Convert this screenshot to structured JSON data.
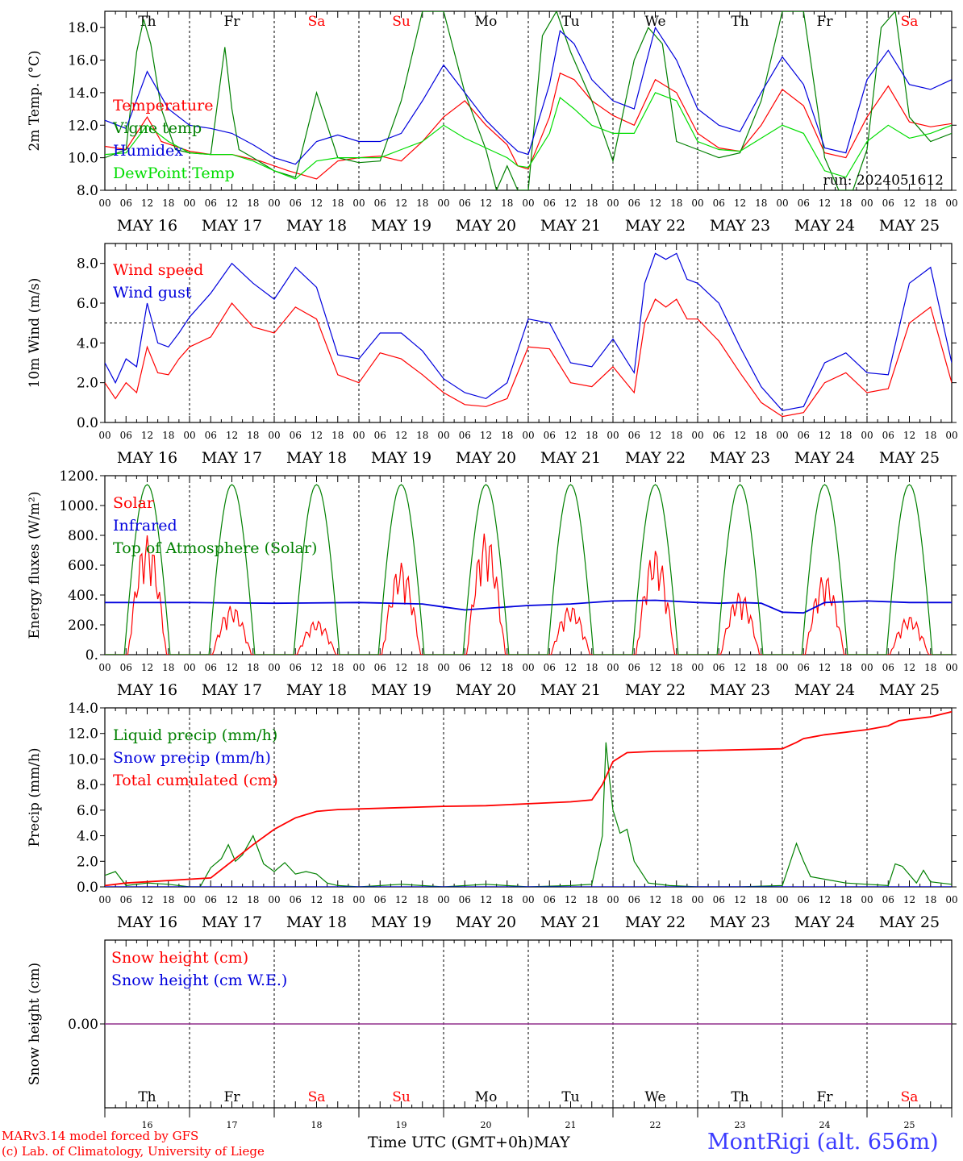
{
  "colors": {
    "red": "#ff0000",
    "green": "#008000",
    "lightgreen": "#00dd00",
    "blue": "#0000dd",
    "purple": "#7a2a9a",
    "station_blue": "#3c3cff"
  },
  "days": {
    "weekdays": [
      "Th",
      "Fr",
      "Sa",
      "Su",
      "Mo",
      "Tu",
      "We",
      "Th",
      "Fr",
      "Sa"
    ],
    "weekday_colors": [
      "#000000",
      "#000000",
      "#ff0000",
      "#ff0000",
      "#000000",
      "#000000",
      "#000000",
      "#000000",
      "#000000",
      "#ff0000"
    ],
    "dates": [
      "MAY 16",
      "MAY 17",
      "MAY 18",
      "MAY 19",
      "MAY 20",
      "MAY 21",
      "MAY 22",
      "MAY 23",
      "MAY 24",
      "MAY 25"
    ],
    "day_numbers": [
      "16",
      "17",
      "18",
      "19",
      "20",
      "21",
      "22",
      "23",
      "24",
      "25"
    ],
    "hour_labels": [
      "00",
      "06",
      "12",
      "18"
    ],
    "final_hour_label": "00"
  },
  "run_label": "run: 2024051612",
  "footer": {
    "model_line": "MARv3.14 model forced by GFS",
    "copyright_line": "(c) Lab. of Climatology, University of Liege",
    "time_axis": "Time UTC (GMT+0h)",
    "month": "MAY",
    "station": "MontRigi (alt. 656m)"
  },
  "chart_data": [
    {
      "type": "line",
      "ylabel": "2m Temp. (°C)",
      "ylim": [
        8,
        19
      ],
      "yticks": [
        8,
        10,
        12,
        14,
        16,
        18
      ],
      "ytick_labels": [
        "8.0",
        "10.0",
        "12.0",
        "14.0",
        "16.0",
        "18.0"
      ],
      "x_hours_range": [
        0,
        240
      ],
      "show_weekdays": true,
      "series": [
        {
          "name": "Temperature",
          "color": "#ff0000",
          "x": [
            0,
            6,
            12,
            16,
            24,
            30,
            36,
            44,
            52,
            60,
            66,
            72,
            78,
            84,
            90,
            96,
            102,
            108,
            114,
            117,
            120,
            126,
            129,
            133,
            138,
            144,
            150,
            156,
            162,
            168,
            174,
            180,
            186,
            192,
            198,
            204,
            210,
            216,
            222,
            228,
            234,
            240
          ],
          "values": [
            10.7,
            10.5,
            12.5,
            11.0,
            10.4,
            10.2,
            10.2,
            9.8,
            9.2,
            8.7,
            9.8,
            10.0,
            10.1,
            9.8,
            11.0,
            12.5,
            13.5,
            12.0,
            10.8,
            9.5,
            9.3,
            12.5,
            15.2,
            14.8,
            13.5,
            12.6,
            12.0,
            14.8,
            14.0,
            11.5,
            10.6,
            10.4,
            12.0,
            14.2,
            13.2,
            10.3,
            10.0,
            12.5,
            14.4,
            12.2,
            11.9,
            12.1
          ]
        },
        {
          "name": "Vigne temp",
          "color": "#008000",
          "x": [
            0,
            6,
            9,
            11,
            13,
            16,
            20,
            24,
            30,
            34,
            36,
            38,
            42,
            48,
            54,
            60,
            66,
            72,
            78,
            84,
            90,
            96,
            102,
            108,
            111,
            114,
            117,
            120,
            124,
            128,
            132,
            138,
            144,
            150,
            154,
            158,
            162,
            168,
            174,
            180,
            186,
            192,
            198,
            204,
            208,
            212,
            216,
            220,
            224,
            228,
            234,
            240
          ],
          "values": [
            10.0,
            10.5,
            16.5,
            18.5,
            17.0,
            13.0,
            10.5,
            10.3,
            10.2,
            16.8,
            13.0,
            10.5,
            10.0,
            9.2,
            8.8,
            14.0,
            10.0,
            9.7,
            9.8,
            13.5,
            19.0,
            19.0,
            14.0,
            10.5,
            8.0,
            9.5,
            8.0,
            8.0,
            17.5,
            19.0,
            16.5,
            13.5,
            9.8,
            16.0,
            18.0,
            17.0,
            11.0,
            10.5,
            10.0,
            10.3,
            13.5,
            19.0,
            19.0,
            10.0,
            8.0,
            8.0,
            10.5,
            18.0,
            19.0,
            12.5,
            11.0,
            11.5
          ]
        },
        {
          "name": "Humidex",
          "color": "#0000dd",
          "x": [
            0,
            6,
            12,
            18,
            24,
            30,
            36,
            42,
            48,
            54,
            60,
            66,
            72,
            78,
            84,
            90,
            96,
            102,
            108,
            114,
            117,
            120,
            126,
            129,
            133,
            138,
            144,
            150,
            156,
            162,
            168,
            174,
            180,
            186,
            192,
            198,
            204,
            210,
            216,
            222,
            228,
            234,
            240
          ],
          "values": [
            12.3,
            11.8,
            15.3,
            13.0,
            12.0,
            11.8,
            11.5,
            10.8,
            10.0,
            9.6,
            11.0,
            11.4,
            11.0,
            11.0,
            11.5,
            13.5,
            15.7,
            14.0,
            12.3,
            11.0,
            10.4,
            10.2,
            14.5,
            17.8,
            17.0,
            14.8,
            13.5,
            13.0,
            18.0,
            16.0,
            13.0,
            12.0,
            11.6,
            14.0,
            16.2,
            14.5,
            10.6,
            10.3,
            14.8,
            16.6,
            14.5,
            14.2,
            14.8
          ]
        },
        {
          "name": "DewPoint Temp",
          "color": "#00dd00",
          "x": [
            0,
            6,
            12,
            18,
            24,
            30,
            36,
            42,
            48,
            54,
            60,
            66,
            72,
            78,
            84,
            90,
            96,
            102,
            108,
            114,
            117,
            120,
            126,
            129,
            133,
            138,
            144,
            150,
            156,
            162,
            168,
            174,
            180,
            186,
            192,
            198,
            204,
            210,
            216,
            222,
            228,
            234,
            240
          ],
          "values": [
            10.2,
            10.3,
            12.0,
            11.0,
            10.3,
            10.2,
            10.2,
            9.8,
            9.2,
            8.7,
            9.8,
            10.0,
            10.0,
            10.0,
            10.5,
            11.0,
            12.0,
            11.2,
            10.6,
            10.0,
            9.5,
            9.4,
            11.5,
            13.7,
            13.0,
            12.0,
            11.5,
            11.5,
            14.0,
            13.5,
            11.0,
            10.5,
            10.4,
            11.2,
            12.0,
            11.5,
            9.2,
            8.8,
            11.0,
            12.0,
            11.2,
            11.5,
            12.0
          ]
        }
      ]
    },
    {
      "type": "line",
      "ylabel": "10m Wind (m/s)",
      "ylim": [
        0,
        9
      ],
      "yticks": [
        0,
        2,
        4,
        6,
        8
      ],
      "ytick_labels": [
        "0.0",
        "2.0",
        "4.0",
        "6.0",
        "8.0"
      ],
      "x_hours_range": [
        0,
        240
      ],
      "reference_line": 5,
      "series": [
        {
          "name": "Wind speed",
          "color": "#ff0000",
          "x": [
            0,
            3,
            6,
            9,
            12,
            15,
            18,
            21,
            24,
            30,
            36,
            42,
            48,
            54,
            60,
            66,
            72,
            78,
            84,
            90,
            96,
            102,
            108,
            114,
            120,
            126,
            132,
            138,
            144,
            150,
            153,
            156,
            159,
            162,
            165,
            168,
            174,
            180,
            186,
            192,
            198,
            204,
            210,
            216,
            222,
            228,
            234,
            240
          ],
          "values": [
            2.0,
            1.2,
            2.0,
            1.5,
            3.8,
            2.5,
            2.4,
            3.2,
            3.8,
            4.3,
            6.0,
            4.8,
            4.5,
            5.8,
            5.2,
            2.4,
            2.0,
            3.5,
            3.2,
            2.4,
            1.5,
            0.9,
            0.8,
            1.2,
            3.8,
            3.7,
            2.0,
            1.8,
            2.8,
            1.5,
            5.0,
            6.2,
            5.8,
            6.2,
            5.2,
            5.2,
            4.1,
            2.5,
            1.0,
            0.3,
            0.5,
            2.0,
            2.5,
            1.5,
            1.7,
            5.0,
            5.8,
            2.0
          ]
        },
        {
          "name": "Wind gust",
          "color": "#0000dd",
          "x": [
            0,
            3,
            6,
            9,
            12,
            15,
            18,
            21,
            24,
            30,
            36,
            42,
            48,
            54,
            60,
            66,
            72,
            78,
            84,
            90,
            96,
            102,
            108,
            114,
            120,
            126,
            132,
            138,
            144,
            150,
            153,
            156,
            159,
            162,
            165,
            168,
            174,
            180,
            186,
            192,
            198,
            204,
            210,
            216,
            222,
            228,
            234,
            240
          ],
          "values": [
            3.0,
            2.0,
            3.2,
            2.8,
            6.0,
            4.0,
            3.8,
            4.5,
            5.3,
            6.5,
            8.0,
            7.0,
            6.2,
            7.8,
            6.8,
            3.4,
            3.2,
            4.5,
            4.5,
            3.6,
            2.2,
            1.5,
            1.2,
            2.0,
            5.2,
            5.0,
            3.0,
            2.8,
            4.2,
            2.5,
            7.0,
            8.5,
            8.2,
            8.5,
            7.2,
            7.0,
            6.0,
            3.8,
            1.8,
            0.6,
            0.8,
            3.0,
            3.5,
            2.5,
            2.4,
            7.0,
            7.8,
            3.0
          ]
        }
      ]
    },
    {
      "type": "line",
      "ylabel": "Energy fluxes (W/m²)",
      "ylim": [
        0,
        1200
      ],
      "yticks": [
        0,
        200,
        400,
        600,
        800,
        1000,
        1200
      ],
      "ytick_labels": [
        "0.",
        "200.",
        "400.",
        "600.",
        "800.",
        "1000.",
        "1200."
      ],
      "x_hours_range": [
        0,
        240
      ],
      "series": [
        {
          "name": "Solar",
          "color": "#ff0000",
          "daily_peak": [
            800,
            330,
            230,
            620,
            820,
            330,
            710,
            420,
            540,
            260
          ]
        },
        {
          "name": "Infrared",
          "color": "#0000dd",
          "x": [
            0,
            24,
            48,
            72,
            90,
            96,
            102,
            108,
            120,
            132,
            144,
            156,
            168,
            174,
            180,
            186,
            192,
            198,
            204,
            216,
            228,
            240
          ],
          "values": [
            350,
            350,
            345,
            350,
            340,
            320,
            300,
            310,
            330,
            340,
            360,
            365,
            350,
            345,
            350,
            345,
            285,
            280,
            350,
            360,
            350,
            350
          ]
        },
        {
          "name": "Top of Atmosphere (Solar)",
          "color": "#008000",
          "daily_peak": [
            1140,
            1140,
            1140,
            1140,
            1140,
            1140,
            1140,
            1140,
            1140,
            1140
          ]
        }
      ]
    },
    {
      "type": "line",
      "ylabel": "Precip (mm/h)",
      "ylim": [
        0,
        14
      ],
      "yticks": [
        0,
        2,
        4,
        6,
        8,
        10,
        12,
        14
      ],
      "ytick_labels": [
        "0.0",
        "2.0",
        "4.0",
        "6.0",
        "8.0",
        "10.0",
        "12.0",
        "14.0"
      ],
      "x_hours_range": [
        0,
        240
      ],
      "series": [
        {
          "name": "Liquid precip (mm/h)",
          "color": "#008000",
          "x": [
            0,
            3,
            6,
            12,
            18,
            24,
            27,
            30,
            33,
            35,
            37,
            39,
            42,
            45,
            48,
            51,
            54,
            57,
            60,
            63,
            66,
            72,
            84,
            96,
            108,
            120,
            132,
            138,
            141,
            142,
            143,
            144,
            146,
            148,
            150,
            154,
            160,
            168,
            180,
            192,
            196,
            198,
            200,
            204,
            210,
            216,
            222,
            224,
            226,
            230,
            232,
            234,
            240
          ],
          "values": [
            0.9,
            1.2,
            0.1,
            0.3,
            0.2,
            0.0,
            0.0,
            1.5,
            2.2,
            3.3,
            2.0,
            2.5,
            4.0,
            1.8,
            1.2,
            1.9,
            1.0,
            1.2,
            1.0,
            0.3,
            0.1,
            0.0,
            0.2,
            0.0,
            0.2,
            0.0,
            0.1,
            0.2,
            4.0,
            11.3,
            8.5,
            6.0,
            4.2,
            4.5,
            2.0,
            0.3,
            0.1,
            0.0,
            0.0,
            0.1,
            3.4,
            2.0,
            0.8,
            0.6,
            0.3,
            0.2,
            0.1,
            1.8,
            1.6,
            0.3,
            1.3,
            0.4,
            0.2
          ]
        },
        {
          "name": "Snow precip (mm/h)",
          "color": "#0000dd",
          "x": [
            0,
            240
          ],
          "values": [
            0.0,
            0.0
          ]
        },
        {
          "name": "Total cumulated (cm)",
          "color": "#ff0000",
          "x": [
            0,
            6,
            12,
            18,
            24,
            30,
            36,
            42,
            48,
            54,
            60,
            66,
            72,
            84,
            96,
            108,
            120,
            132,
            138,
            141,
            144,
            148,
            156,
            168,
            192,
            196,
            198,
            204,
            216,
            222,
            225,
            228,
            234,
            240
          ],
          "values": [
            0.1,
            0.3,
            0.4,
            0.5,
            0.6,
            0.7,
            2.0,
            3.3,
            4.5,
            5.4,
            5.9,
            6.05,
            6.1,
            6.2,
            6.3,
            6.35,
            6.5,
            6.65,
            6.8,
            8.0,
            9.8,
            10.5,
            10.6,
            10.65,
            10.8,
            11.3,
            11.6,
            11.9,
            12.3,
            12.6,
            13.0,
            13.1,
            13.3,
            13.7
          ]
        }
      ]
    },
    {
      "type": "line",
      "ylabel": "Snow height (cm)",
      "yticks": [
        0
      ],
      "ytick_labels": [
        "0.00"
      ],
      "x_hours_range": [
        0,
        240
      ],
      "series": [
        {
          "name": "Snow height (cm)",
          "color": "#ff0000",
          "x": [
            0,
            240
          ],
          "values": [
            0,
            0
          ]
        },
        {
          "name": "Snow height (cm W.E.)",
          "color": "#0000dd",
          "x": [
            0,
            240
          ],
          "values": [
            0,
            0
          ]
        }
      ]
    }
  ]
}
